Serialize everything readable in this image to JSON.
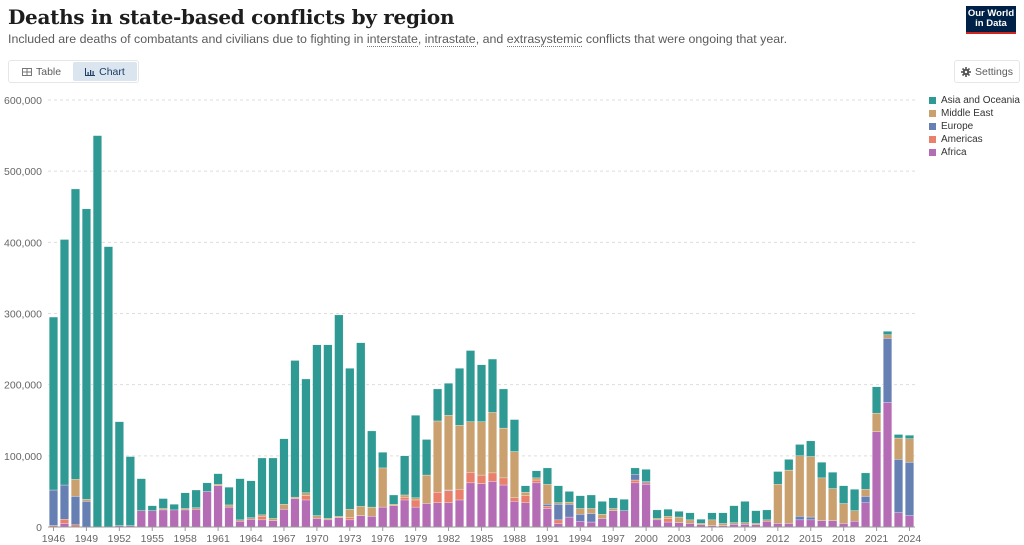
{
  "header": {
    "title": "Deaths in state-based conflicts by region",
    "subtitle_pre": "Included are deaths of combatants and civilians due to fighting in ",
    "subtitle_term1": "interstate",
    "subtitle_sep1": ", ",
    "subtitle_term2": "intrastate",
    "subtitle_sep2": ", and ",
    "subtitle_term3": "extrasystemic",
    "subtitle_post": " conflicts that were ongoing that year.",
    "logo_line1": "Our World",
    "logo_line2": "in Data"
  },
  "controls": {
    "table_label": "Table",
    "chart_label": "Chart",
    "settings_label": "Settings",
    "active_tab": "Chart"
  },
  "colors": {
    "Asia and Oceania": "#2e9a93",
    "Middle East": "#c9a06e",
    "Europe": "#6680b4",
    "Americas": "#e8806b",
    "Africa": "#b46cb5"
  },
  "chart_data": {
    "type": "bar",
    "stacked": true,
    "title": "Deaths in state-based conflicts by region",
    "xlabel": "",
    "ylabel": "",
    "ylim": [
      0,
      600000
    ],
    "yticks": [
      0,
      100000,
      200000,
      300000,
      400000,
      500000,
      600000
    ],
    "ytick_labels": [
      "0",
      "100,000",
      "200,000",
      "300,000",
      "400,000",
      "500,000",
      "600,000"
    ],
    "xtick_labels": [
      "1946",
      "1949",
      "1952",
      "1955",
      "1958",
      "1961",
      "1964",
      "1967",
      "1970",
      "1973",
      "1976",
      "1979",
      "1982",
      "1985",
      "1988",
      "1991",
      "1994",
      "1997",
      "2000",
      "2003",
      "2006",
      "2009",
      "2012",
      "2015",
      "2018",
      "2021",
      "2024"
    ],
    "grid": true,
    "legend_position": "right",
    "legend": [
      "Asia and Oceania",
      "Middle East",
      "Europe",
      "Americas",
      "Africa"
    ],
    "categories": [
      1946,
      1947,
      1948,
      1949,
      1950,
      1951,
      1952,
      1953,
      1954,
      1955,
      1956,
      1957,
      1958,
      1959,
      1960,
      1961,
      1962,
      1963,
      1964,
      1965,
      1966,
      1967,
      1968,
      1969,
      1970,
      1971,
      1972,
      1973,
      1974,
      1975,
      1976,
      1977,
      1978,
      1979,
      1980,
      1981,
      1982,
      1983,
      1984,
      1985,
      1986,
      1987,
      1988,
      1989,
      1990,
      1991,
      1992,
      1993,
      1994,
      1995,
      1996,
      1997,
      1998,
      1999,
      2000,
      2001,
      2002,
      2003,
      2004,
      2005,
      2006,
      2007,
      2008,
      2009,
      2010,
      2011,
      2012,
      2013,
      2014,
      2015,
      2016,
      2017,
      2018,
      2019,
      2020,
      2021,
      2022,
      2023,
      2024
    ],
    "series": [
      {
        "name": "Africa",
        "values": [
          0,
          5000,
          0,
          0,
          0,
          0,
          2000,
          2000,
          23000,
          23000,
          24000,
          24000,
          24000,
          25000,
          50000,
          58000,
          28000,
          8000,
          11000,
          10000,
          9000,
          25000,
          40000,
          38000,
          12000,
          10000,
          13000,
          10000,
          16000,
          15000,
          28000,
          30000,
          38000,
          28000,
          33000,
          34000,
          34000,
          38000,
          62000,
          61000,
          64000,
          59000,
          36000,
          34000,
          62000,
          26000,
          5000,
          14000,
          8000,
          7000,
          12000,
          23000,
          23000,
          62000,
          60000,
          10000,
          7000,
          6000,
          5000,
          3000,
          2000,
          2000,
          4000,
          4000,
          3000,
          8000,
          5000,
          5000,
          10000,
          10000,
          9000,
          9000,
          5000,
          8000,
          34000,
          134000,
          175000,
          20000,
          16000
        ]
      },
      {
        "name": "Americas",
        "values": [
          2000,
          6000,
          3000,
          0,
          0,
          0,
          0,
          0,
          0,
          0,
          0,
          0,
          0,
          0,
          0,
          0,
          0,
          0,
          0,
          5000,
          0,
          0,
          0,
          6000,
          0,
          0,
          0,
          3000,
          0,
          0,
          0,
          0,
          4000,
          10000,
          0,
          15000,
          17000,
          15000,
          15000,
          12000,
          12000,
          10000,
          5000,
          10000,
          4000,
          3000,
          5000,
          0,
          0,
          0,
          0,
          0,
          0,
          4000,
          2000,
          0,
          5000,
          0,
          0,
          0,
          0,
          0,
          0,
          0,
          0,
          0,
          0,
          0,
          0,
          0,
          0,
          0,
          0,
          0,
          0,
          0,
          0,
          0,
          0
        ]
      },
      {
        "name": "Europe",
        "values": [
          50000,
          48000,
          40000,
          36000,
          0,
          0,
          0,
          0,
          0,
          0,
          0,
          0,
          0,
          0,
          0,
          0,
          0,
          0,
          0,
          0,
          0,
          0,
          0,
          0,
          0,
          0,
          0,
          0,
          0,
          0,
          0,
          0,
          0,
          0,
          0,
          0,
          1000,
          0,
          0,
          0,
          0,
          0,
          0,
          0,
          0,
          3000,
          22000,
          18000,
          10000,
          12000,
          0,
          0,
          0,
          8000,
          2000,
          0,
          0,
          0,
          0,
          0,
          0,
          0,
          0,
          0,
          0,
          0,
          0,
          0,
          5000,
          4000,
          0,
          0,
          0,
          0,
          9000,
          0,
          90000,
          75000,
          75000
        ]
      },
      {
        "name": "Middle East",
        "values": [
          0,
          0,
          24000,
          3000,
          0,
          0,
          0,
          0,
          0,
          0,
          2000,
          0,
          2000,
          2000,
          0,
          2000,
          3000,
          2000,
          2000,
          2000,
          3000,
          7000,
          2000,
          4000,
          4000,
          2000,
          2000,
          12000,
          13000,
          13000,
          55000,
          2000,
          3000,
          3000,
          40000,
          100000,
          105000,
          90000,
          71000,
          75000,
          85000,
          70000,
          65000,
          5000,
          3000,
          28000,
          2000,
          3000,
          8000,
          7000,
          6000,
          3000,
          0,
          0,
          0,
          2000,
          3000,
          8000,
          5000,
          2000,
          8000,
          3000,
          2000,
          2000,
          2000,
          2000,
          55000,
          75000,
          85000,
          85000,
          60000,
          45000,
          28000,
          15000,
          10000,
          26000,
          5000,
          30000,
          33000
        ]
      },
      {
        "name": "Asia and Oceania",
        "values": [
          243000,
          345000,
          408000,
          408000,
          550000,
          394000,
          146000,
          97000,
          45000,
          7000,
          14000,
          8000,
          22000,
          25000,
          12000,
          15000,
          25000,
          58000,
          52000,
          80000,
          85000,
          92000,
          192000,
          160000,
          240000,
          244000,
          283000,
          198000,
          230000,
          107000,
          22000,
          13000,
          55000,
          116000,
          50000,
          45000,
          45000,
          80000,
          100000,
          80000,
          75000,
          55000,
          45000,
          9000,
          10000,
          23000,
          24000,
          15000,
          18000,
          19000,
          18000,
          15000,
          16000,
          9000,
          17000,
          12000,
          10000,
          8000,
          10000,
          6000,
          10000,
          15000,
          24000,
          30000,
          18000,
          14000,
          18000,
          15000,
          16000,
          22000,
          22000,
          23000,
          25000,
          30000,
          23000,
          37000,
          5000,
          5000,
          5000
        ]
      }
    ]
  }
}
